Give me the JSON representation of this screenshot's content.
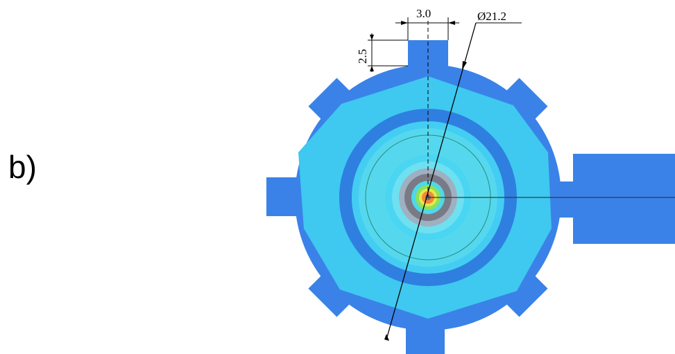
{
  "panel_label": "b)",
  "dimensions": {
    "tab_width": "3.0",
    "tab_height": "2.5",
    "diameter": "Ø21.2"
  },
  "colors": {
    "outer_blue": "#3a82e8",
    "light_cyan": "#3fc8f0",
    "mid_cyan": "#55d8ee",
    "ring_blue": "#2f7fe0",
    "inner_cyan": "#4ad6f2",
    "core_gray": "#7a7a86",
    "core_green": "#8ee05a",
    "core_yellow": "#e8e84a",
    "core_orange": "#f08a3a",
    "line": "#000000"
  }
}
